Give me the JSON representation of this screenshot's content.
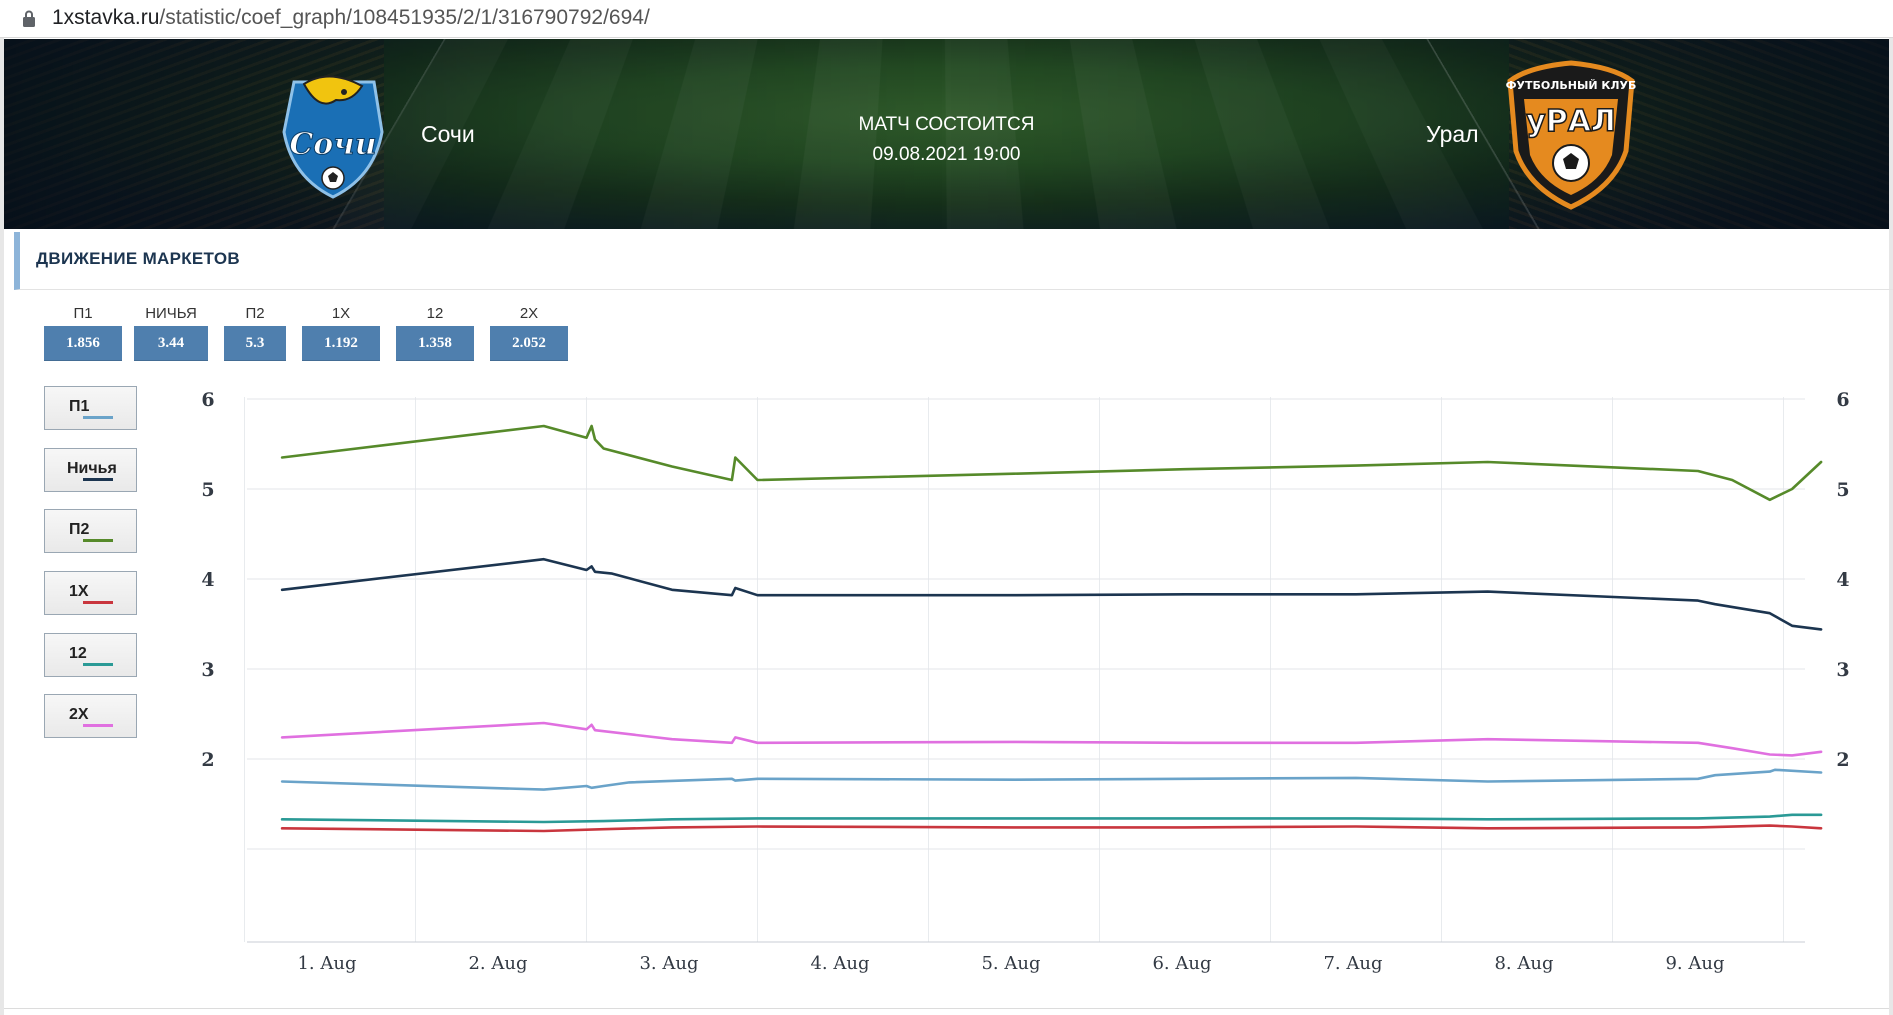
{
  "browser": {
    "url_host": "1xstavka.ru",
    "url_path": "/statistic/coef_graph/108451935/2/1/316790792/694/"
  },
  "match": {
    "home_team": "Сочи",
    "away_team": "Урал",
    "status": "МАТЧ СОСТОИТСЯ",
    "datetime": "09.08.2021 19:00",
    "home_logo_text": "Сочи",
    "away_logo_text": "уРАЛ",
    "away_logo_caption": "ФУТБОЛЬНЫЙ КЛУБ"
  },
  "section": {
    "title": "ДВИЖЕНИЕ МАРКЕТОВ"
  },
  "odds": [
    {
      "label": "П1",
      "value": "1.856"
    },
    {
      "label": "НИЧЬЯ",
      "value": "3.44"
    },
    {
      "label": "П2",
      "value": "5.3"
    },
    {
      "label": "1X",
      "value": "1.192"
    },
    {
      "label": "12",
      "value": "1.358"
    },
    {
      "label": "2X",
      "value": "2.052"
    }
  ],
  "legend": [
    {
      "label": "П1",
      "color": "#6aa3c9"
    },
    {
      "label": "Ничья",
      "color": "#1c3550"
    },
    {
      "label": "П2",
      "color": "#568a2a"
    },
    {
      "label": "1X",
      "color": "#c9363e"
    },
    {
      "label": "12",
      "color": "#2a9a96"
    },
    {
      "label": "2X",
      "color": "#e070e0"
    }
  ],
  "chart_data": {
    "type": "line",
    "title": "",
    "xlabel": "",
    "ylabel": "",
    "x_ticks": [
      "1. Aug",
      "2. Aug",
      "3. Aug",
      "4. Aug",
      "5. Aug",
      "6. Aug",
      "7. Aug",
      "8. Aug",
      "9. Aug"
    ],
    "y_ticks": [
      2,
      3,
      4,
      5,
      6
    ],
    "ylim": [
      0,
      6
    ],
    "xlim": [
      0.6,
      9.8
    ],
    "grid": true,
    "dual_y_axis": true,
    "series": [
      {
        "name": "П2",
        "color": "#568a2a",
        "x": [
          0.72,
          2.25,
          2.5,
          2.53,
          2.55,
          2.6,
          3.0,
          3.35,
          3.37,
          3.5,
          5.0,
          6.0,
          7.0,
          7.77,
          9.0,
          9.2,
          9.42,
          9.55,
          9.72
        ],
        "y": [
          5.35,
          5.7,
          5.57,
          5.7,
          5.55,
          5.45,
          5.25,
          5.1,
          5.35,
          5.1,
          5.17,
          5.22,
          5.26,
          5.3,
          5.2,
          5.1,
          4.88,
          5.0,
          5.3
        ]
      },
      {
        "name": "Ничья",
        "color": "#1c3550",
        "x": [
          0.72,
          2.25,
          2.5,
          2.53,
          2.55,
          2.65,
          3.0,
          3.35,
          3.37,
          3.5,
          5.0,
          6.0,
          7.0,
          7.77,
          9.0,
          9.1,
          9.42,
          9.55,
          9.72
        ],
        "y": [
          3.88,
          4.22,
          4.1,
          4.14,
          4.08,
          4.06,
          3.88,
          3.82,
          3.9,
          3.82,
          3.82,
          3.83,
          3.83,
          3.86,
          3.76,
          3.72,
          3.62,
          3.48,
          3.44
        ]
      },
      {
        "name": "2X",
        "color": "#e070e0",
        "x": [
          0.72,
          2.25,
          2.5,
          2.53,
          2.55,
          3.0,
          3.35,
          3.37,
          3.5,
          5.0,
          6.0,
          7.0,
          7.77,
          9.0,
          9.2,
          9.42,
          9.55,
          9.72
        ],
        "y": [
          2.24,
          2.4,
          2.33,
          2.38,
          2.32,
          2.22,
          2.18,
          2.24,
          2.18,
          2.19,
          2.18,
          2.18,
          2.22,
          2.18,
          2.12,
          2.05,
          2.04,
          2.08
        ]
      },
      {
        "name": "П1",
        "color": "#6aa3c9",
        "x": [
          0.72,
          2.25,
          2.5,
          2.53,
          2.6,
          2.75,
          3.35,
          3.37,
          3.5,
          5.0,
          6.0,
          7.0,
          7.77,
          9.0,
          9.1,
          9.42,
          9.45,
          9.72
        ],
        "y": [
          1.75,
          1.66,
          1.7,
          1.68,
          1.7,
          1.74,
          1.78,
          1.76,
          1.78,
          1.77,
          1.78,
          1.79,
          1.75,
          1.78,
          1.82,
          1.86,
          1.88,
          1.85
        ]
      },
      {
        "name": "12",
        "color": "#2a9a96",
        "x": [
          0.72,
          2.25,
          2.6,
          3.0,
          3.5,
          5.0,
          6.0,
          7.0,
          7.77,
          9.0,
          9.42,
          9.55,
          9.72
        ],
        "y": [
          1.33,
          1.3,
          1.31,
          1.33,
          1.34,
          1.34,
          1.34,
          1.34,
          1.33,
          1.34,
          1.36,
          1.38,
          1.38
        ]
      },
      {
        "name": "1X",
        "color": "#c9363e",
        "x": [
          0.72,
          2.25,
          2.6,
          3.0,
          3.5,
          5.0,
          6.0,
          7.0,
          7.77,
          9.0,
          9.42,
          9.55,
          9.72
        ],
        "y": [
          1.23,
          1.2,
          1.22,
          1.24,
          1.25,
          1.24,
          1.24,
          1.25,
          1.23,
          1.24,
          1.26,
          1.25,
          1.23
        ]
      }
    ]
  }
}
